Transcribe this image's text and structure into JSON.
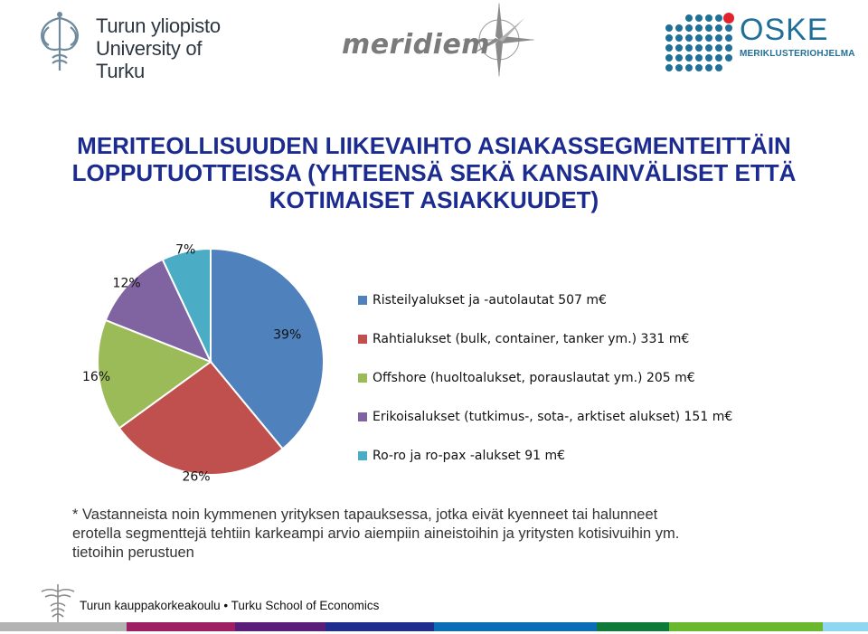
{
  "logos": {
    "university": {
      "line1": "Turun yliopisto",
      "line2": "University of Turku",
      "color": "#2c3640"
    },
    "meridiem": {
      "text": "meridiem",
      "color": "#7b7b7b"
    },
    "oske": {
      "name": "OSKE",
      "subtitle": "MERIKLUSTERIOHJELMA",
      "color": "#1f6f98",
      "accent": "#e0242b"
    }
  },
  "title": {
    "line1": "MERITEOLLISUUDEN LIIKEVAIHTO ASIAKASSEGMENTEITTÄIN",
    "line2": "LOPPUTUOTTEISSA (YHTEENSÄ SEKÄ KANSAINVÄLISET ETTÄ",
    "line3": "KOTIMAISET ASIAKKUUDET)",
    "color": "#1c2b8f"
  },
  "chart_data": {
    "type": "pie",
    "slices": [
      {
        "label": "Risteilyalukset ja -autolautat 507 m€",
        "value": 39,
        "display": "39%",
        "color": "#4f81bd"
      },
      {
        "label": "Rahtialukset (bulk, container, tanker ym.) 331 m€",
        "value": 26,
        "display": "26%",
        "color": "#c0504d"
      },
      {
        "label": "Offshore (huoltoalukset, porauslautat ym.) 205 m€",
        "value": 16,
        "display": "16%",
        "color": "#9bbb59"
      },
      {
        "label": "Erikoisalukset (tutkimus-, sota-, arktiset alukset) 151 m€",
        "value": 12,
        "display": "12%",
        "color": "#8064a2"
      },
      {
        "label": "Ro-ro ja ro-pax -alukset 91 m€",
        "value": 7,
        "display": "7%",
        "color": "#4bacc6"
      }
    ],
    "legend_position": "right"
  },
  "footnote": {
    "line1": "* Vastanneista noin kymmenen  yrityksen tapauksessa, jotka eivät kyenneet tai halunneet",
    "line2": "erotella segmenttejä tehtiin karkeampi arvio aiempiin aineistoihin ja yritysten kotisivuihin ym.",
    "line3": "tietoihin perustuen"
  },
  "footer": {
    "text": "Turun kauppakorkeakoulu • Turku School of Economics",
    "stripe_colors": [
      "#b3b3b3",
      "#9e1f63",
      "#5a1e7a",
      "#1f2d8f",
      "#0a6db5",
      "#0e7a3a",
      "#6ab82e",
      "#8fd6f0"
    ]
  }
}
